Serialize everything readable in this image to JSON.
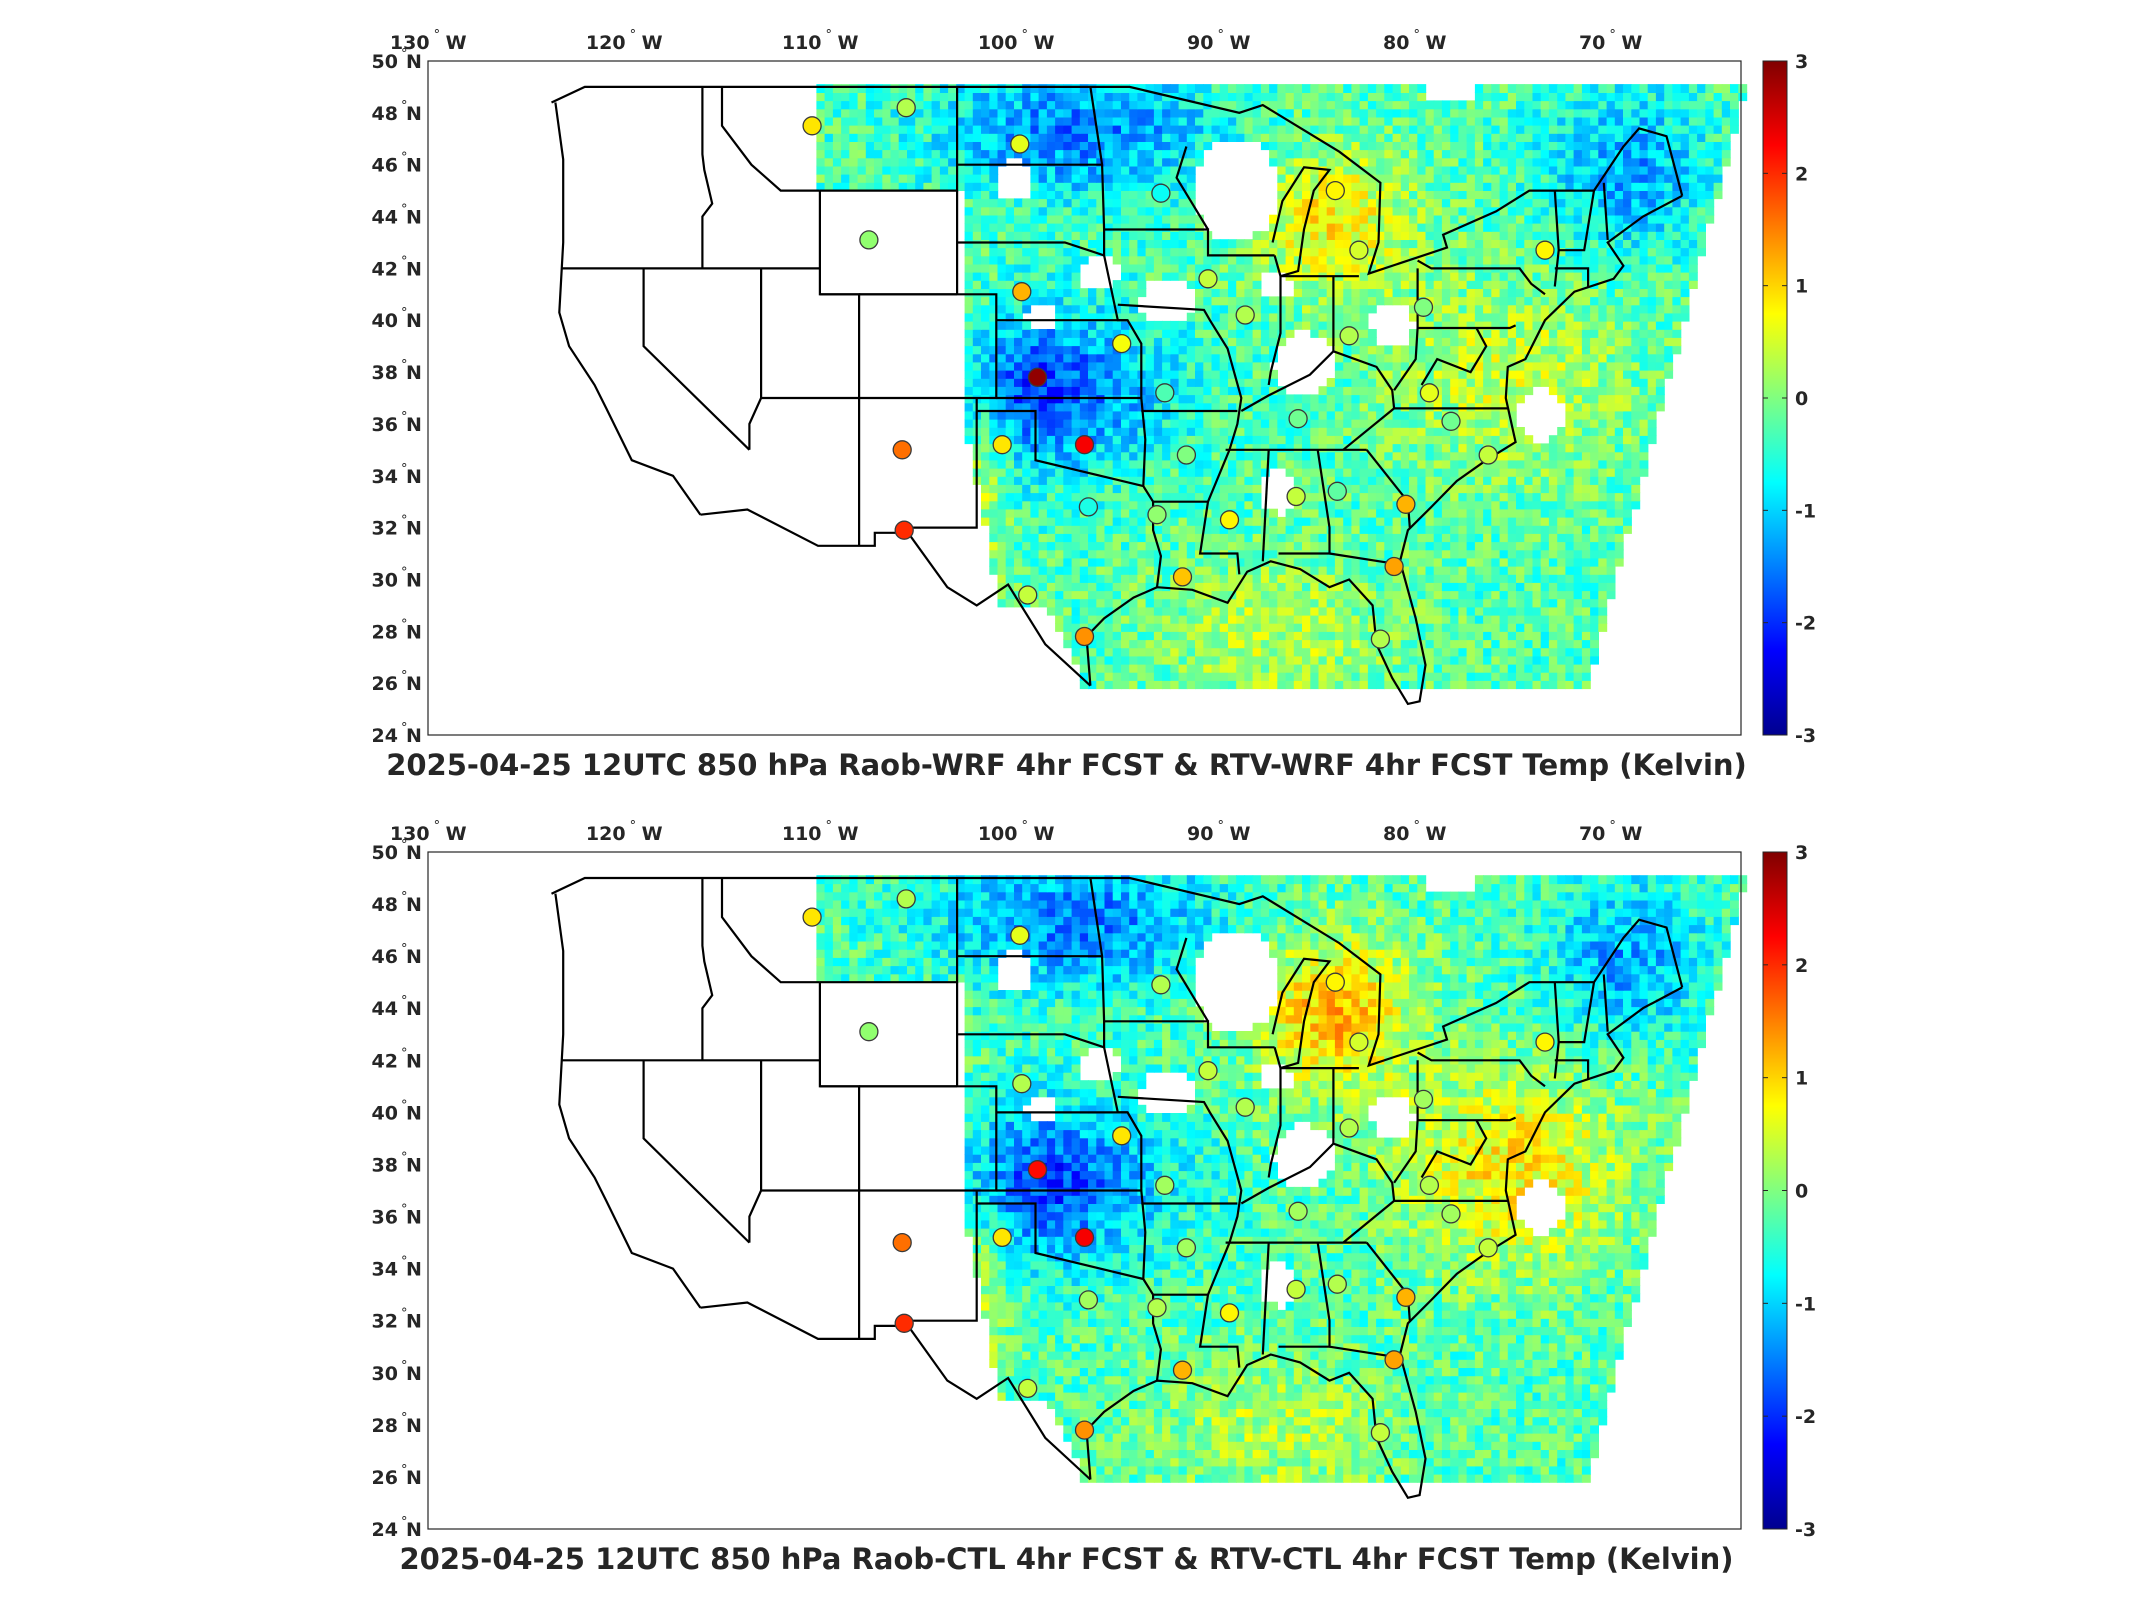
{
  "lon_labels": [
    "130",
    "120",
    "110",
    "100",
    "90",
    "80",
    "70"
  ],
  "lon_hemisphere": "W",
  "lat_labels": [
    "50",
    "48",
    "46",
    "44",
    "42",
    "40",
    "38",
    "36",
    "34",
    "32",
    "30",
    "28",
    "26",
    "24"
  ],
  "lat_hemisphere": "N",
  "degree_symbol": "°",
  "colorbar": {
    "ticks": [
      "3",
      "2",
      "1",
      "0",
      "-1",
      "-2",
      "-3"
    ],
    "range": [
      -3,
      3
    ],
    "colormap": [
      "#00008f",
      "#0000ff",
      "#0080ff",
      "#00ffff",
      "#80ff80",
      "#ffff00",
      "#ff8000",
      "#ff0000",
      "#800000"
    ]
  },
  "panels": [
    {
      "title": "2025-04-25 12UTC 850 hPa Raob-WRF 4hr FCST & RTV-WRF 4hr FCST Temp (Kelvin)",
      "stations": [
        {
          "lon": -111.4,
          "lat": 47.5,
          "value": 0.9
        },
        {
          "lon": -106.6,
          "lat": 48.2,
          "value": 0.3
        },
        {
          "lon": -100.8,
          "lat": 46.8,
          "value": 0.6
        },
        {
          "lon": -93.6,
          "lat": 44.9,
          "value": -0.7
        },
        {
          "lon": -84.7,
          "lat": 45.0,
          "value": 0.8
        },
        {
          "lon": -108.5,
          "lat": 43.1,
          "value": 0.1
        },
        {
          "lon": -100.7,
          "lat": 41.1,
          "value": 1.2
        },
        {
          "lon": -83.5,
          "lat": 42.7,
          "value": 0.5
        },
        {
          "lon": -74.0,
          "lat": 42.7,
          "value": 0.8
        },
        {
          "lon": -91.2,
          "lat": 41.6,
          "value": 0.4
        },
        {
          "lon": -89.3,
          "lat": 40.2,
          "value": 0.3
        },
        {
          "lon": -95.6,
          "lat": 39.1,
          "value": 0.7
        },
        {
          "lon": -84.0,
          "lat": 39.4,
          "value": 0.3
        },
        {
          "lon": -80.2,
          "lat": 40.5,
          "value": 0.0
        },
        {
          "lon": -99.9,
          "lat": 37.8,
          "value": 2.9
        },
        {
          "lon": -93.4,
          "lat": 37.2,
          "value": -0.3
        },
        {
          "lon": -79.9,
          "lat": 37.2,
          "value": 0.6
        },
        {
          "lon": -86.6,
          "lat": 36.2,
          "value": -0.1
        },
        {
          "lon": -78.8,
          "lat": 36.1,
          "value": -0.1
        },
        {
          "lon": -106.8,
          "lat": 35.0,
          "value": 1.6
        },
        {
          "lon": -101.7,
          "lat": 35.2,
          "value": 0.9
        },
        {
          "lon": -97.5,
          "lat": 35.2,
          "value": 2.3
        },
        {
          "lon": -92.3,
          "lat": 34.8,
          "value": 0.0
        },
        {
          "lon": -76.9,
          "lat": 34.8,
          "value": 0.4
        },
        {
          "lon": -97.3,
          "lat": 32.8,
          "value": -0.6
        },
        {
          "lon": -93.8,
          "lat": 32.5,
          "value": 0.1
        },
        {
          "lon": -90.1,
          "lat": 32.3,
          "value": 0.8
        },
        {
          "lon": -86.7,
          "lat": 33.2,
          "value": 0.4
        },
        {
          "lon": -84.6,
          "lat": 33.4,
          "value": -0.2
        },
        {
          "lon": -81.1,
          "lat": 32.9,
          "value": 1.2
        },
        {
          "lon": -106.7,
          "lat": 31.9,
          "value": 2.0
        },
        {
          "lon": -92.5,
          "lat": 30.1,
          "value": 1.1
        },
        {
          "lon": -81.7,
          "lat": 30.5,
          "value": 1.3
        },
        {
          "lon": -100.4,
          "lat": 29.4,
          "value": 0.4
        },
        {
          "lon": -97.5,
          "lat": 27.8,
          "value": 1.4
        },
        {
          "lon": -82.4,
          "lat": 27.7,
          "value": 0.3
        }
      ]
    },
    {
      "title": "2025-04-25 12UTC 850 hPa Raob-CTL 4hr FCST & RTV-CTL 4hr FCST Temp (Kelvin)",
      "stations": [
        {
          "lon": -111.4,
          "lat": 47.5,
          "value": 0.9
        },
        {
          "lon": -106.6,
          "lat": 48.2,
          "value": 0.3
        },
        {
          "lon": -100.8,
          "lat": 46.8,
          "value": 0.6
        },
        {
          "lon": -93.6,
          "lat": 44.9,
          "value": 0.3
        },
        {
          "lon": -84.7,
          "lat": 45.0,
          "value": 0.8
        },
        {
          "lon": -108.5,
          "lat": 43.1,
          "value": 0.1
        },
        {
          "lon": -100.7,
          "lat": 41.1,
          "value": 0.3
        },
        {
          "lon": -83.5,
          "lat": 42.7,
          "value": 0.5
        },
        {
          "lon": -74.0,
          "lat": 42.7,
          "value": 0.8
        },
        {
          "lon": -91.2,
          "lat": 41.6,
          "value": 0.4
        },
        {
          "lon": -89.3,
          "lat": 40.2,
          "value": 0.3
        },
        {
          "lon": -95.6,
          "lat": 39.1,
          "value": 0.9
        },
        {
          "lon": -84.0,
          "lat": 39.4,
          "value": 0.3
        },
        {
          "lon": -80.2,
          "lat": 40.5,
          "value": 0.2
        },
        {
          "lon": -99.9,
          "lat": 37.8,
          "value": 2.2
        },
        {
          "lon": -93.4,
          "lat": 37.2,
          "value": 0.2
        },
        {
          "lon": -79.9,
          "lat": 37.2,
          "value": 0.3
        },
        {
          "lon": -86.6,
          "lat": 36.2,
          "value": 0.2
        },
        {
          "lon": -78.8,
          "lat": 36.1,
          "value": 0.2
        },
        {
          "lon": -106.8,
          "lat": 35.0,
          "value": 1.6
        },
        {
          "lon": -101.7,
          "lat": 35.2,
          "value": 0.9
        },
        {
          "lon": -97.5,
          "lat": 35.2,
          "value": 2.3
        },
        {
          "lon": -92.3,
          "lat": 34.8,
          "value": 0.2
        },
        {
          "lon": -76.9,
          "lat": 34.8,
          "value": 0.4
        },
        {
          "lon": -97.3,
          "lat": 32.8,
          "value": 0.2
        },
        {
          "lon": -93.8,
          "lat": 32.5,
          "value": 0.3
        },
        {
          "lon": -90.1,
          "lat": 32.3,
          "value": 0.8
        },
        {
          "lon": -86.7,
          "lat": 33.2,
          "value": 0.4
        },
        {
          "lon": -84.6,
          "lat": 33.4,
          "value": 0.3
        },
        {
          "lon": -81.1,
          "lat": 32.9,
          "value": 1.2
        },
        {
          "lon": -106.7,
          "lat": 31.9,
          "value": 2.0
        },
        {
          "lon": -92.5,
          "lat": 30.1,
          "value": 1.2
        },
        {
          "lon": -81.7,
          "lat": 30.5,
          "value": 1.3
        },
        {
          "lon": -100.4,
          "lat": 29.4,
          "value": 0.4
        },
        {
          "lon": -97.5,
          "lat": 27.8,
          "value": 1.4
        },
        {
          "lon": -82.4,
          "lat": 27.7,
          "value": 0.4
        }
      ]
    }
  ]
}
